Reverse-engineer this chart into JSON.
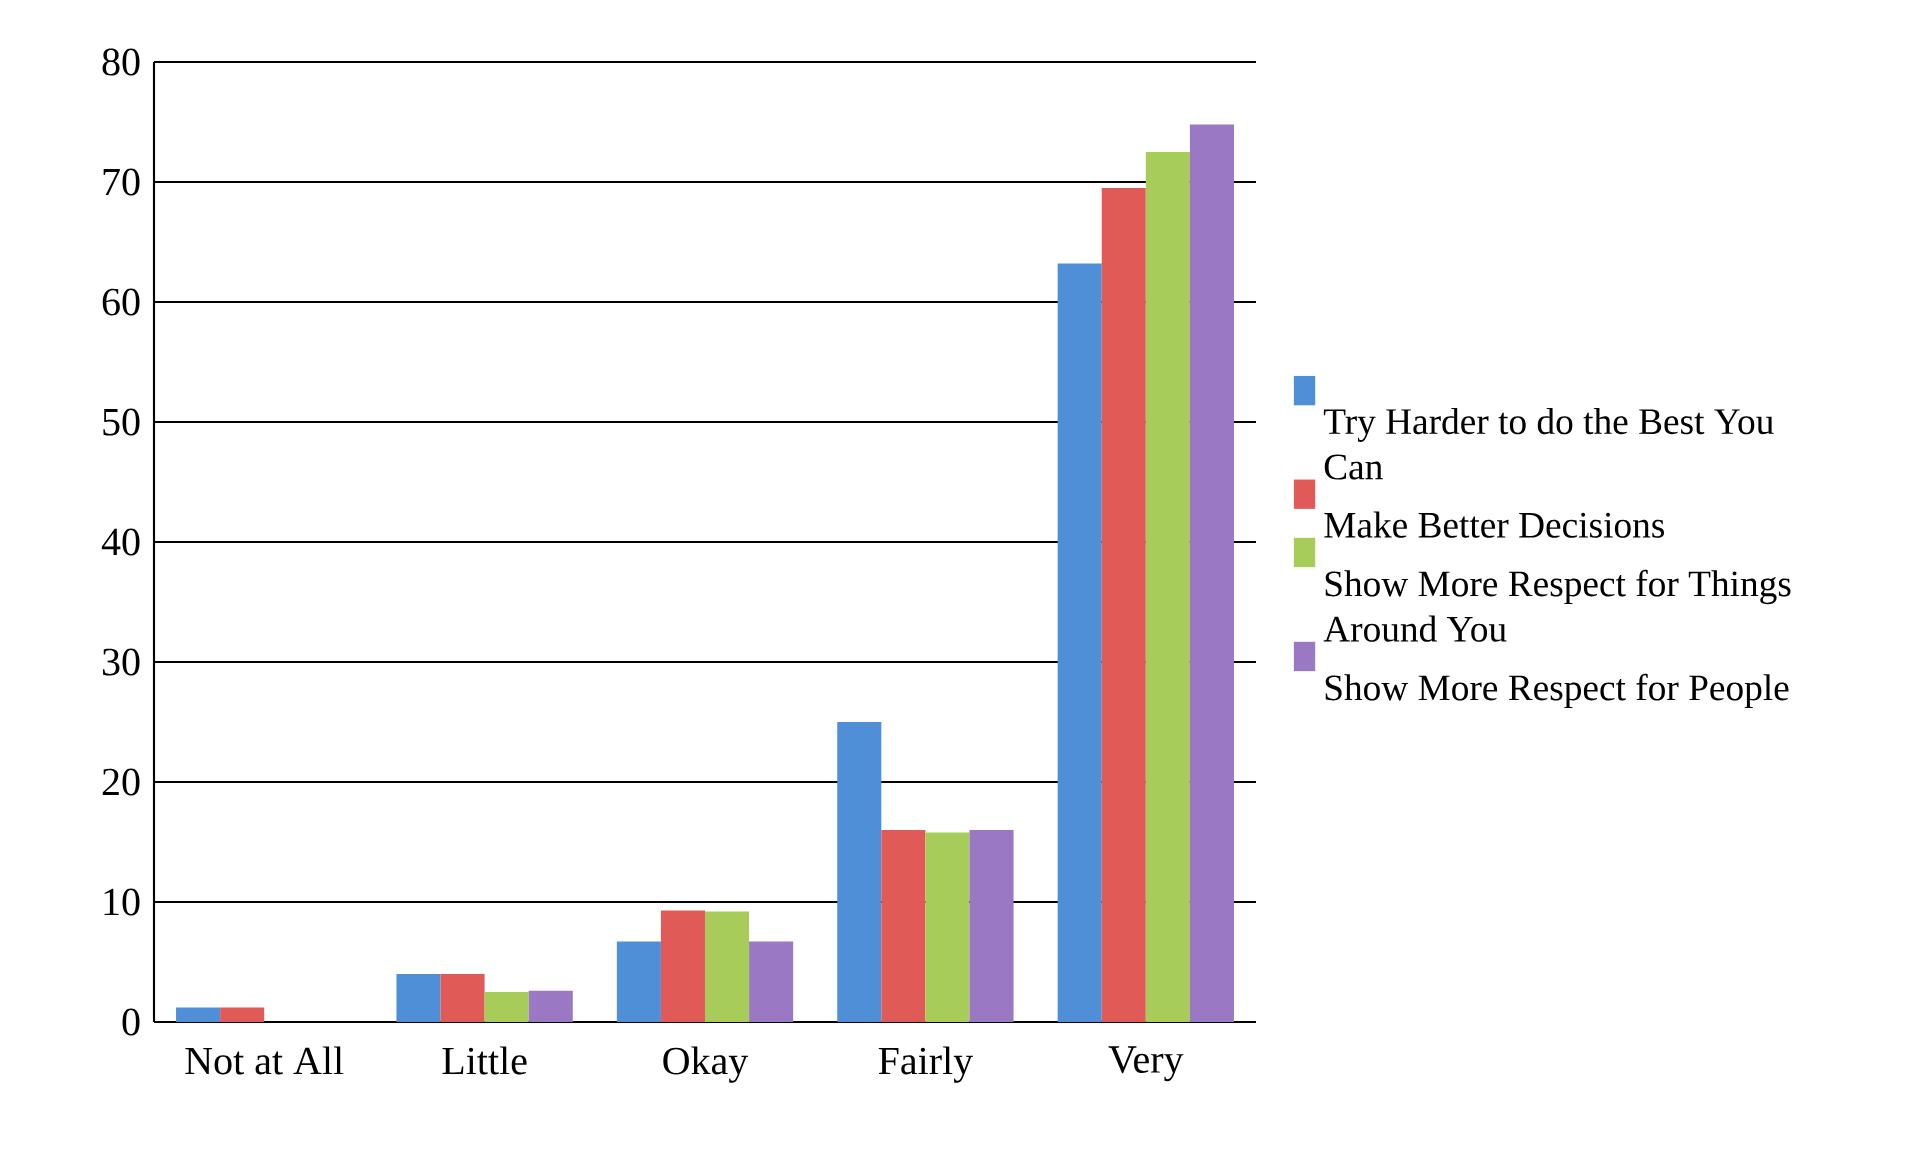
{
  "chart_data": {
    "type": "bar",
    "categories": [
      "Not at All",
      "Little",
      "Okay",
      "Fairly",
      "Very"
    ],
    "series": [
      {
        "name": "Try Harder to do the Best You Can",
        "color": "#4f8fd8",
        "values": [
          1.2,
          4.0,
          6.7,
          25,
          63.2
        ]
      },
      {
        "name": "Make Better Decisions",
        "color": "#e05a58",
        "values": [
          1.2,
          4.0,
          9.3,
          16,
          69.5
        ]
      },
      {
        "name": "Show More Respect for Things Around You",
        "color": "#a8cc5a",
        "values": [
          0,
          2.5,
          9.2,
          15.8,
          72.5
        ]
      },
      {
        "name": "Show More Respect for People",
        "color": "#9a78c4",
        "values": [
          0,
          2.6,
          6.7,
          16,
          74.8
        ]
      }
    ],
    "ylim": [
      0,
      80
    ],
    "yticks": [
      0,
      10,
      20,
      30,
      40,
      50,
      60,
      70,
      80
    ],
    "grid": "y",
    "legend": "right"
  }
}
